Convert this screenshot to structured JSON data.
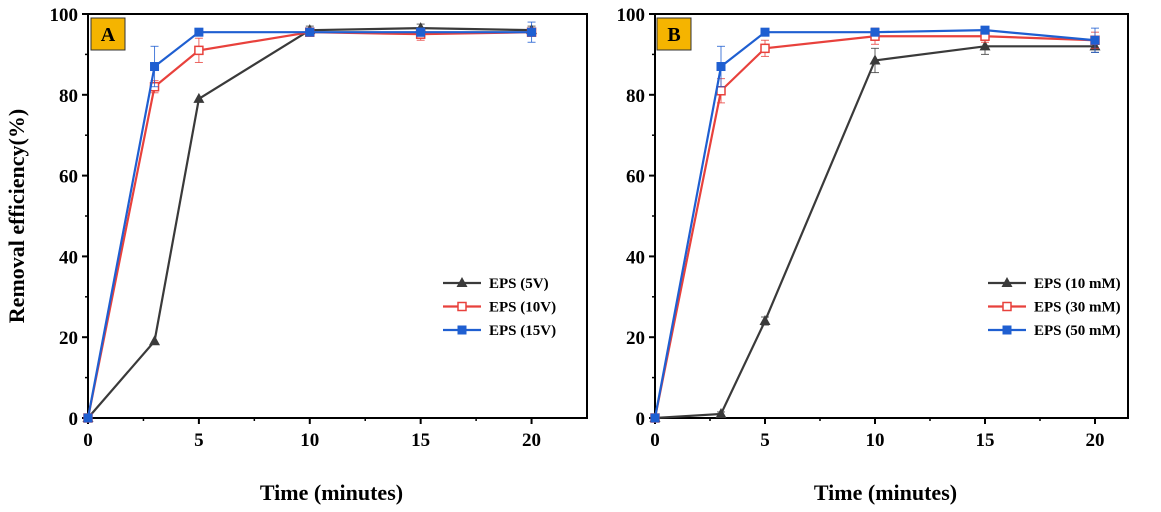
{
  "colors": {
    "black_series": "#3a3a3a",
    "red_series": "#e8413c",
    "blue_series": "#1f5fd1",
    "panel_tag_bg": "#f5b400"
  },
  "chart_data": [
    {
      "type": "line",
      "panel_label": "A",
      "xlabel": "Time (minutes)",
      "ylabel": "Removal efficiency(%)",
      "xlim": [
        0,
        22.5
      ],
      "ylim": [
        0,
        100
      ],
      "xticks": [
        0,
        5,
        10,
        15,
        20
      ],
      "yticks": [
        0,
        20,
        40,
        60,
        80,
        100
      ],
      "legend_position": "right-middle",
      "series": [
        {
          "name": "EPS (5V)",
          "marker": "triangle",
          "color": "#3a3a3a",
          "x": [
            0,
            3,
            5,
            10,
            15,
            20
          ],
          "y": [
            0,
            19,
            79,
            96,
            96.5,
            96
          ],
          "err": [
            0,
            0,
            0,
            1,
            1,
            1
          ]
        },
        {
          "name": "EPS (10V)",
          "marker": "open-square",
          "color": "#e8413c",
          "x": [
            0,
            3,
            5,
            10,
            15,
            20
          ],
          "y": [
            0,
            82,
            91,
            95.5,
            95,
            95.5
          ],
          "err": [
            0,
            1.5,
            3,
            0.5,
            1.5,
            1
          ]
        },
        {
          "name": "EPS (15V)",
          "marker": "square",
          "color": "#1f5fd1",
          "x": [
            0,
            3,
            5,
            10,
            15,
            20
          ],
          "y": [
            0,
            87,
            95.5,
            95.5,
            95.5,
            95.5
          ],
          "err": [
            0,
            5,
            0.5,
            0.5,
            1,
            2.5
          ]
        }
      ]
    },
    {
      "type": "line",
      "panel_label": "B",
      "xlabel": "Time (minutes)",
      "ylabel": "",
      "xlim": [
        0,
        21.5
      ],
      "ylim": [
        0,
        100
      ],
      "xticks": [
        0,
        5,
        10,
        15,
        20
      ],
      "yticks": [
        0,
        20,
        40,
        60,
        80,
        100
      ],
      "legend_position": "bottom-right",
      "series": [
        {
          "name": "EPS (10 mM)",
          "marker": "triangle",
          "color": "#3a3a3a",
          "x": [
            0,
            3,
            5,
            10,
            15,
            20
          ],
          "y": [
            0,
            1,
            24,
            88.5,
            92,
            92
          ],
          "err": [
            0,
            0.5,
            1,
            3,
            2,
            1.5
          ]
        },
        {
          "name": "EPS (30 mM)",
          "marker": "open-square",
          "color": "#e8413c",
          "x": [
            0,
            3,
            5,
            10,
            15,
            20
          ],
          "y": [
            0,
            81,
            91.5,
            94.5,
            94.5,
            93.5
          ],
          "err": [
            0,
            3,
            2,
            2,
            1.5,
            2
          ]
        },
        {
          "name": "EPS (50 mM)",
          "marker": "square",
          "color": "#1f5fd1",
          "x": [
            0,
            3,
            5,
            10,
            15,
            20
          ],
          "y": [
            0,
            87,
            95.5,
            95.5,
            96,
            93.5
          ],
          "err": [
            0,
            5,
            0.5,
            0.5,
            0.5,
            3
          ]
        }
      ]
    }
  ]
}
